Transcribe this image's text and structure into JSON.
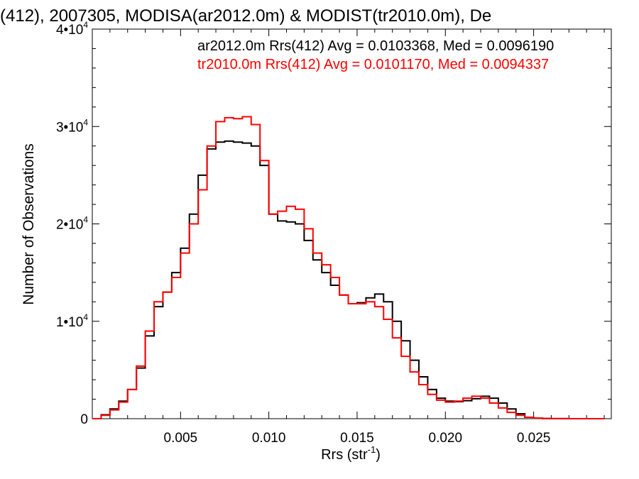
{
  "chart_data": {
    "type": "line",
    "title": "(412), 2007305, MODISA(ar2012.0m) & MODIST(tr2010.0m), De",
    "xlabel_main": "Rrs (str",
    "xlabel_sup": "-1",
    "xlabel_close": ")",
    "ylabel": "Number of Observations",
    "xlim": [
      0.0,
      0.0294
    ],
    "ylim": [
      0,
      40000
    ],
    "x_ticks": [
      {
        "value": 0.005,
        "label": "0.005"
      },
      {
        "value": 0.01,
        "label": "0.010"
      },
      {
        "value": 0.015,
        "label": "0.015"
      },
      {
        "value": 0.02,
        "label": "0.020"
      },
      {
        "value": 0.025,
        "label": "0.025"
      }
    ],
    "y_ticks": [
      {
        "value": 0,
        "label": "0",
        "sup": ""
      },
      {
        "value": 10000,
        "label": "1•10",
        "sup": "4"
      },
      {
        "value": 20000,
        "label": "2•10",
        "sup": "4"
      },
      {
        "value": 30000,
        "label": "3•10",
        "sup": "4"
      },
      {
        "value": 40000,
        "label": "4•10",
        "sup": "4"
      }
    ],
    "legend_placement": "top-right",
    "series": [
      {
        "name": "ar2012.0m Rrs(412) Avg = 0.0103368, Med = 0.0096190",
        "color": "#000000",
        "x": [
          0.0,
          0.0005,
          0.001,
          0.0015,
          0.002,
          0.0025,
          0.003,
          0.0035,
          0.004,
          0.0045,
          0.005,
          0.0055,
          0.006,
          0.0065,
          0.007,
          0.0075,
          0.008,
          0.0085,
          0.009,
          0.0095,
          0.01,
          0.0105,
          0.011,
          0.0115,
          0.012,
          0.0125,
          0.013,
          0.0135,
          0.014,
          0.0145,
          0.015,
          0.0155,
          0.016,
          0.0165,
          0.017,
          0.0175,
          0.018,
          0.0185,
          0.019,
          0.0195,
          0.02,
          0.0205,
          0.021,
          0.0215,
          0.022,
          0.0225,
          0.023,
          0.0235,
          0.024,
          0.0245,
          0.025,
          0.0255,
          0.026,
          0.027,
          0.028,
          0.029
        ],
        "y": [
          0,
          400,
          1000,
          1800,
          3000,
          5200,
          8500,
          11500,
          13000,
          15000,
          17500,
          21000,
          25000,
          27700,
          28400,
          28500,
          28400,
          28300,
          28000,
          26000,
          21000,
          20300,
          20200,
          20000,
          18300,
          16300,
          15000,
          13700,
          12700,
          11800,
          11900,
          12400,
          12800,
          12000,
          10000,
          8000,
          6000,
          4300,
          3000,
          2100,
          1800,
          1750,
          1850,
          2050,
          2300,
          2100,
          1600,
          1000,
          500,
          150,
          50,
          20,
          10,
          0,
          0,
          0
        ]
      },
      {
        "name": "tr2010.0m Rrs(412) Avg = 0.0101170, Med = 0.0094337",
        "color": "#ff0000",
        "x": [
          0.0,
          0.0005,
          0.001,
          0.0015,
          0.002,
          0.0025,
          0.003,
          0.0035,
          0.004,
          0.0045,
          0.005,
          0.0055,
          0.006,
          0.0065,
          0.007,
          0.0075,
          0.008,
          0.0085,
          0.009,
          0.0095,
          0.01,
          0.0105,
          0.011,
          0.0115,
          0.012,
          0.0125,
          0.013,
          0.0135,
          0.014,
          0.0145,
          0.015,
          0.0155,
          0.016,
          0.0165,
          0.017,
          0.0175,
          0.018,
          0.0185,
          0.019,
          0.0195,
          0.02,
          0.0205,
          0.021,
          0.0215,
          0.022,
          0.0225,
          0.023,
          0.0235,
          0.024,
          0.0245,
          0.025,
          0.0255,
          0.026,
          0.027,
          0.028,
          0.029
        ],
        "y": [
          0,
          350,
          900,
          1700,
          3000,
          5400,
          9000,
          12000,
          13000,
          14500,
          17000,
          20000,
          23500,
          28000,
          30500,
          30900,
          30800,
          31000,
          30200,
          26500,
          21000,
          21300,
          21800,
          21500,
          19500,
          17000,
          15800,
          14500,
          12700,
          11800,
          11800,
          12000,
          11500,
          10200,
          8300,
          6400,
          4800,
          3500,
          2500,
          1900,
          1700,
          1800,
          2100,
          2300,
          2100,
          1600,
          1100,
          650,
          350,
          150,
          50,
          20,
          10,
          0,
          0,
          0
        ]
      }
    ]
  }
}
